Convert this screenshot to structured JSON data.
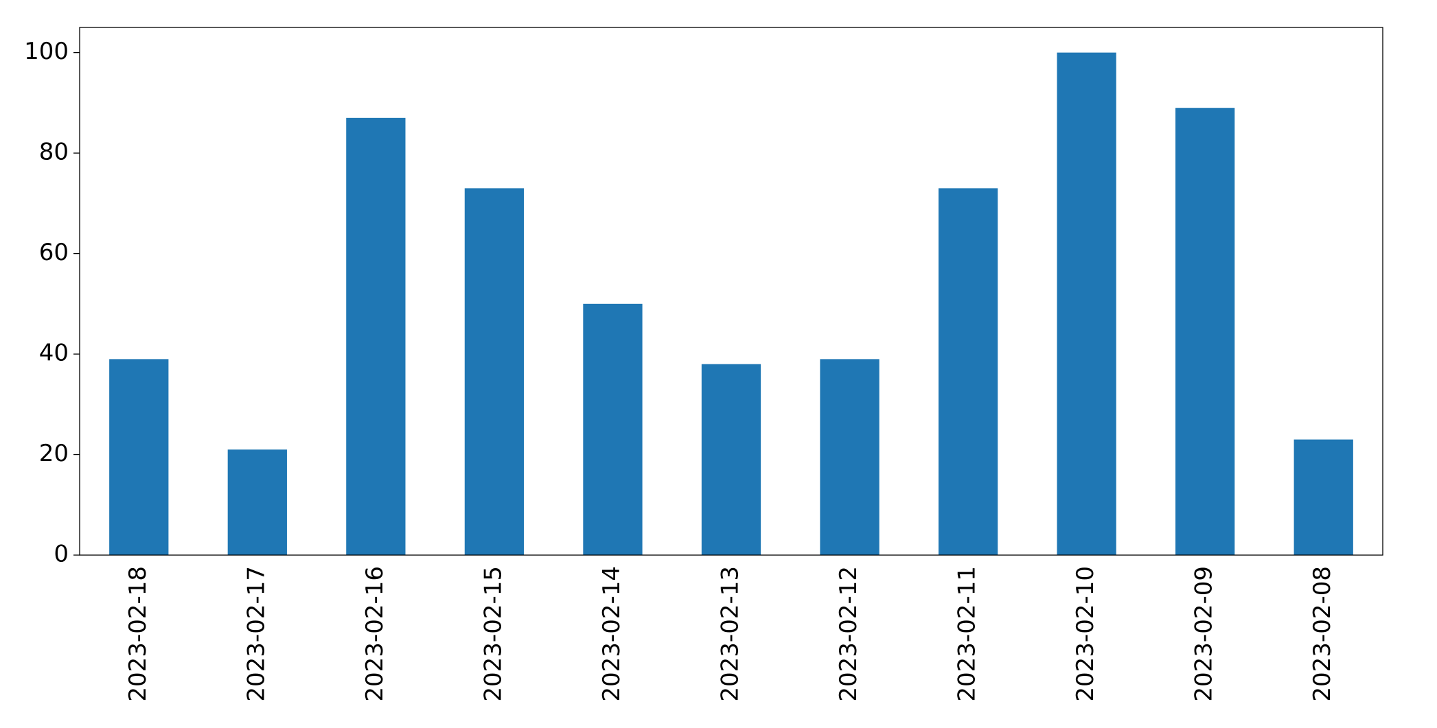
{
  "chart_data": {
    "type": "bar",
    "categories": [
      "2023-02-18",
      "2023-02-17",
      "2023-02-16",
      "2023-02-15",
      "2023-02-14",
      "2023-02-13",
      "2023-02-12",
      "2023-02-11",
      "2023-02-10",
      "2023-02-09",
      "2023-02-08"
    ],
    "values": [
      39,
      21,
      87,
      73,
      50,
      38,
      39,
      73,
      100,
      89,
      23
    ],
    "color": "#1f77b4",
    "ylim": [
      0,
      105
    ],
    "yticks": [
      0,
      20,
      40,
      60,
      80,
      100
    ],
    "grid": false
  }
}
